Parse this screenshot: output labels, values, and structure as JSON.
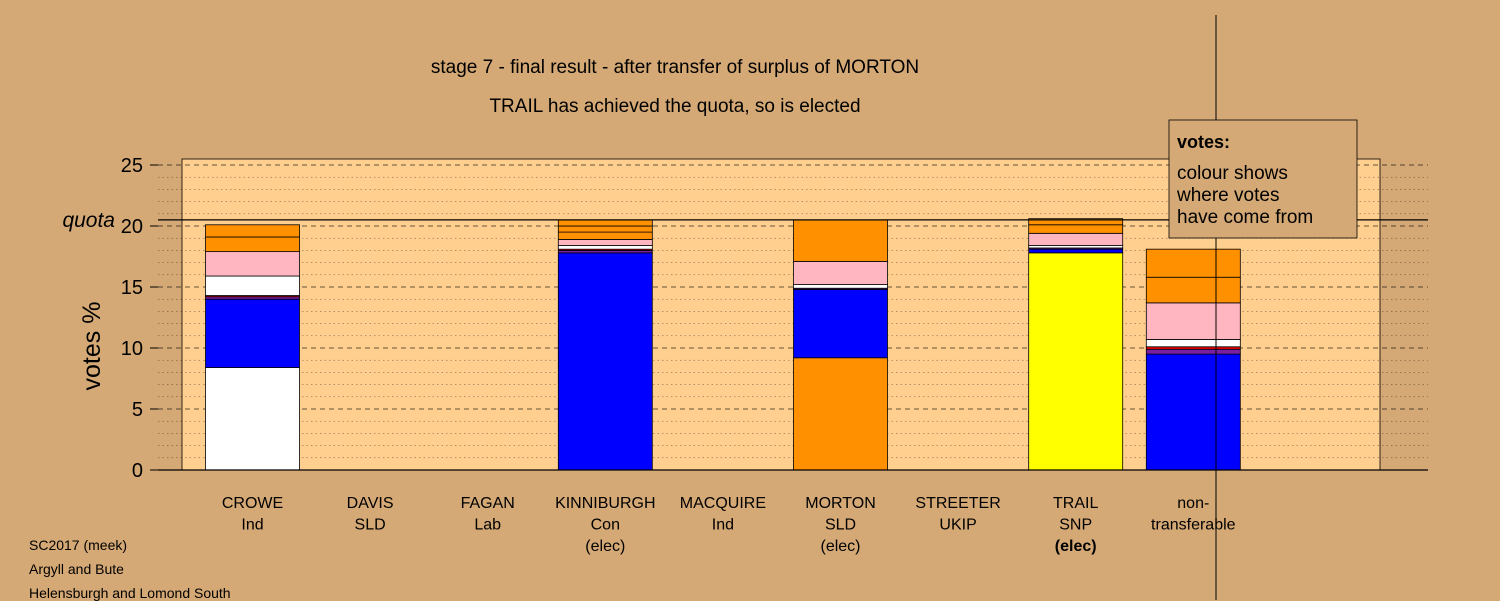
{
  "chart_data": {
    "type": "bar",
    "stacked": true,
    "title": "stage 7 - final result - after transfer of surplus of MORTON",
    "subtitle": "TRAIL has achieved the quota, so is elected",
    "ylabel": "votes %",
    "ylim": [
      0,
      25.5
    ],
    "yticks": [
      "0",
      "5",
      "10",
      "15",
      "20",
      "25"
    ],
    "quota": 20.5,
    "quota_label": "quota",
    "grid": true,
    "candidates": [
      {
        "name": "CROWE",
        "party": "Ind",
        "status": "",
        "segments": [
          {
            "value": 8.4,
            "color": "#ffffff"
          },
          {
            "value": 5.6,
            "color": "#0000ff"
          },
          {
            "value": 0.2,
            "color": "#7a1fa2"
          },
          {
            "value": 0.1,
            "color": "#ff0000"
          },
          {
            "value": 1.6,
            "color": "#ffffff"
          },
          {
            "value": 2.0,
            "color": "#ffb6c1"
          },
          {
            "value": 1.2,
            "color": "#ff9000"
          },
          {
            "value": 1.0,
            "color": "#ff9000"
          }
        ]
      },
      {
        "name": "DAVIS",
        "party": "SLD",
        "status": "",
        "segments": []
      },
      {
        "name": "FAGAN",
        "party": "Lab",
        "status": "",
        "segments": []
      },
      {
        "name": "KINNIBURGH",
        "party": "Con",
        "status": "(elec)",
        "segments": [
          {
            "value": 17.8,
            "color": "#0000ff"
          },
          {
            "value": 0.2,
            "color": "#7a1fa2"
          },
          {
            "value": 0.1,
            "color": "#ff0000"
          },
          {
            "value": 0.3,
            "color": "#ffffff"
          },
          {
            "value": 0.5,
            "color": "#ffb6c1"
          },
          {
            "value": 0.6,
            "color": "#ff9000"
          },
          {
            "value": 0.5,
            "color": "#ff9000"
          },
          {
            "value": 0.5,
            "color": "#ff9000"
          }
        ]
      },
      {
        "name": "MACQUIRE",
        "party": "Ind",
        "status": "",
        "segments": []
      },
      {
        "name": "MORTON",
        "party": "SLD",
        "status": "(elec)",
        "segments": [
          {
            "value": 9.2,
            "color": "#ff9000"
          },
          {
            "value": 5.6,
            "color": "#0000ff"
          },
          {
            "value": 0.1,
            "color": "#7a1fa2"
          },
          {
            "value": 0.3,
            "color": "#ffffff"
          },
          {
            "value": 1.9,
            "color": "#ffb6c1"
          },
          {
            "value": 3.4,
            "color": "#ff9000"
          }
        ]
      },
      {
        "name": "STREETER",
        "party": "UKIP",
        "status": "",
        "segments": []
      },
      {
        "name": "TRAIL",
        "party": "SNP",
        "status": "(elec)",
        "segments": [
          {
            "value": 17.8,
            "color": "#ffff00"
          },
          {
            "value": 0.3,
            "color": "#0000ff"
          },
          {
            "value": 0.1,
            "color": "#7a1fa2"
          },
          {
            "value": 0.2,
            "color": "#ffffff"
          },
          {
            "value": 1.0,
            "color": "#ffb6c1"
          },
          {
            "value": 0.7,
            "color": "#ff9000"
          },
          {
            "value": 0.5,
            "color": "#ff9000"
          }
        ]
      },
      {
        "name": "non-",
        "party": "transferable",
        "status": "",
        "segments": [
          {
            "value": 9.5,
            "color": "#0000ff"
          },
          {
            "value": 0.4,
            "color": "#7a1fa2"
          },
          {
            "value": 0.2,
            "color": "#ff0000"
          },
          {
            "value": 0.6,
            "color": "#ffffff"
          },
          {
            "value": 3.0,
            "color": "#ffb6c1"
          },
          {
            "value": 2.1,
            "color": "#ff9000"
          },
          {
            "value": 2.3,
            "color": "#ff9000"
          }
        ]
      }
    ],
    "legend": {
      "title": "votes:",
      "lines": [
        "colour shows",
        "where votes",
        "have come from"
      ]
    }
  },
  "colors": {
    "background": "#d5a975",
    "plot_band": "#ffcf90",
    "segment_outline": "#000000"
  },
  "footer": {
    "line1": "SC2017 (meek)",
    "line2": "Argyll and Bute",
    "line3": "Helensburgh and Lomond South"
  }
}
